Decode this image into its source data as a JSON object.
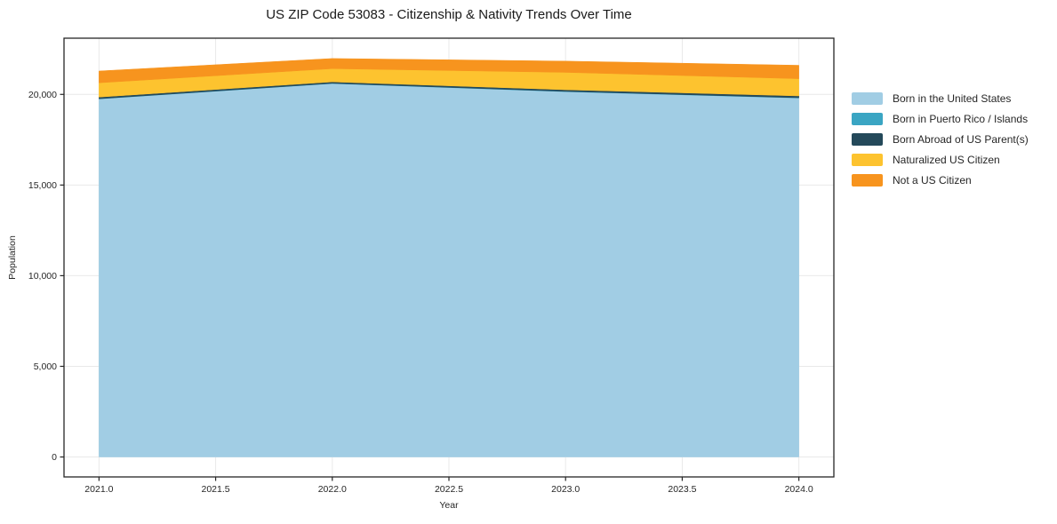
{
  "title": "US ZIP Code 53083 - Citizenship & Nativity Trends Over Time",
  "axes": {
    "x_label": "Year",
    "y_label": "Population",
    "x_ticks": [
      "2021.0",
      "2021.5",
      "2022.0",
      "2022.5",
      "2023.0",
      "2023.5",
      "2024.0"
    ],
    "x_tick_values": [
      2021.0,
      2021.5,
      2022.0,
      2022.5,
      2023.0,
      2023.5,
      2024.0
    ],
    "y_ticks": [
      "0",
      "5,000",
      "10,000",
      "15,000",
      "20,000"
    ],
    "y_tick_values": [
      0,
      5000,
      10000,
      15000,
      20000
    ]
  },
  "legend": {
    "entries": [
      {
        "label": "Born in the United States",
        "color": "#a1cde4"
      },
      {
        "label": "Born in Puerto Rico / Islands",
        "color": "#3aa5c3"
      },
      {
        "label": "Born Abroad of US Parent(s)",
        "color": "#24495a"
      },
      {
        "label": "Naturalized US Citizen",
        "color": "#fdc32f"
      },
      {
        "label": "Not a US Citizen",
        "color": "#f7941e"
      }
    ]
  },
  "chart_data": {
    "type": "area",
    "stacked": true,
    "title": "US ZIP Code 53083 - Citizenship & Nativity Trends Over Time",
    "xlabel": "Year",
    "ylabel": "Population",
    "x": [
      2021,
      2022,
      2023,
      2024
    ],
    "series": [
      {
        "name": "Born in the United States",
        "color": "#a1cde4",
        "values": [
          19750,
          20600,
          20150,
          19800
        ]
      },
      {
        "name": "Born in Puerto Rico / Islands",
        "color": "#3aa5c3",
        "values": [
          10,
          10,
          15,
          15
        ]
      },
      {
        "name": "Born Abroad of US Parent(s)",
        "color": "#24495a",
        "values": [
          90,
          80,
          90,
          100
        ]
      },
      {
        "name": "Naturalized US Citizen",
        "color": "#fdc32f",
        "values": [
          790,
          730,
          960,
          950
        ]
      },
      {
        "name": "Not a US Citizen",
        "color": "#f7941e",
        "values": [
          650,
          560,
          620,
          740
        ]
      }
    ],
    "totals": [
      21290,
      21980,
      21835,
      21605
    ],
    "xlim": [
      2020.85,
      2024.15
    ],
    "ylim": [
      -1100,
      23100
    ],
    "grid": true,
    "grid_color": "#e9e9e9",
    "frame_color": "#262626",
    "legend_position": "right-outside"
  }
}
